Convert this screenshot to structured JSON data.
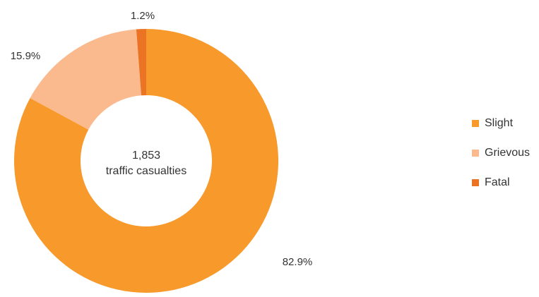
{
  "chart_data": {
    "type": "pie",
    "donut": true,
    "center_text": {
      "value": "1,853",
      "label": "traffic casualties"
    },
    "slices": [
      {
        "name": "Slight",
        "value": 82.9,
        "label": "82.9%",
        "color": "#F7992B"
      },
      {
        "name": "Grievous",
        "value": 15.9,
        "label": "15.9%",
        "color": "#FBBA8D"
      },
      {
        "name": "Fatal",
        "value": 1.2,
        "label": "1.2%",
        "color": "#EA7324"
      }
    ],
    "legend_position": "right"
  }
}
